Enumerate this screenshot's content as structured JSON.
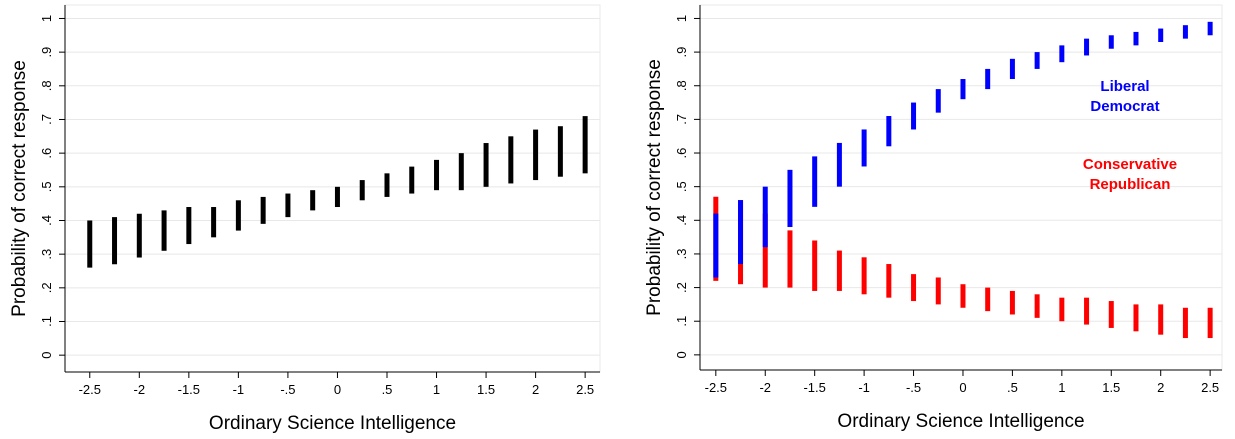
{
  "chart_data": [
    {
      "type": "rangebar",
      "xlabel": "Ordinary Science Intelligence",
      "ylabel": "Probability of correct response",
      "x": [
        -2.5,
        -2.25,
        -2,
        -1.75,
        -1.5,
        -1.25,
        -1,
        -0.75,
        -0.5,
        -0.25,
        0,
        0.25,
        0.5,
        0.75,
        1,
        1.25,
        1.5,
        1.75,
        2,
        2.25,
        2.5
      ],
      "series": [
        {
          "color": "#000000",
          "low": [
            0.26,
            0.27,
            0.29,
            0.31,
            0.33,
            0.35,
            0.37,
            0.39,
            0.41,
            0.43,
            0.44,
            0.46,
            0.47,
            0.48,
            0.49,
            0.49,
            0.5,
            0.51,
            0.52,
            0.53,
            0.54
          ],
          "high": [
            0.4,
            0.41,
            0.42,
            0.43,
            0.44,
            0.44,
            0.46,
            0.47,
            0.48,
            0.49,
            0.5,
            0.52,
            0.54,
            0.56,
            0.58,
            0.6,
            0.63,
            0.65,
            0.67,
            0.68,
            0.71
          ]
        }
      ],
      "xlim": [
        -2.75,
        2.65
      ],
      "ylim": [
        -0.05,
        1.04
      ],
      "xticks": [
        -2.5,
        -2,
        -1.5,
        -1,
        {
          "value": -0.5,
          "label": "-.5"
        },
        0,
        {
          "value": 0.5,
          "label": ".5"
        },
        1,
        1.5,
        2,
        2.5
      ],
      "yticks": [
        0,
        {
          "value": 0.1,
          "label": ".1"
        },
        {
          "value": 0.2,
          "label": ".2"
        },
        {
          "value": 0.3,
          "label": ".3"
        },
        {
          "value": 0.4,
          "label": ".4"
        },
        {
          "value": 0.5,
          "label": ".5"
        },
        {
          "value": 0.6,
          "label": ".6"
        },
        {
          "value": 0.7,
          "label": ".7"
        },
        {
          "value": 0.8,
          "label": ".8"
        },
        {
          "value": 0.9,
          "label": ".9"
        },
        1
      ],
      "grid": true
    },
    {
      "type": "rangebar",
      "xlabel": "Ordinary Science Intelligence",
      "ylabel": "Probability of correct response",
      "x": [
        -2.5,
        -2.25,
        -2,
        -1.75,
        -1.5,
        -1.25,
        -1,
        -0.75,
        -0.5,
        -0.25,
        0,
        0.25,
        0.5,
        0.75,
        1,
        1.25,
        1.5,
        1.75,
        2,
        2.25,
        2.5
      ],
      "series": [
        {
          "name": "Conservative Republican",
          "color": "#ff0000",
          "low": [
            0.22,
            0.21,
            0.2,
            0.2,
            0.19,
            0.19,
            0.18,
            0.17,
            0.16,
            0.15,
            0.14,
            0.13,
            0.12,
            0.11,
            0.1,
            0.09,
            0.08,
            0.07,
            0.06,
            0.05,
            0.05
          ],
          "high": [
            0.47,
            0.46,
            0.42,
            0.37,
            0.34,
            0.31,
            0.29,
            0.27,
            0.24,
            0.23,
            0.21,
            0.2,
            0.19,
            0.18,
            0.17,
            0.17,
            0.16,
            0.15,
            0.15,
            0.14,
            0.14
          ]
        },
        {
          "name": "Liberal Democrat",
          "color": "#0000ff",
          "low": [
            0.23,
            0.27,
            0.32,
            0.38,
            0.44,
            0.5,
            0.56,
            0.62,
            0.67,
            0.72,
            0.76,
            0.79,
            0.82,
            0.85,
            0.87,
            0.89,
            0.91,
            0.92,
            0.93,
            0.94,
            0.95
          ],
          "high": [
            0.42,
            0.46,
            0.5,
            0.55,
            0.59,
            0.63,
            0.67,
            0.71,
            0.75,
            0.79,
            0.82,
            0.85,
            0.88,
            0.9,
            0.92,
            0.94,
            0.95,
            0.96,
            0.97,
            0.98,
            0.99
          ]
        }
      ],
      "xlim": [
        -2.66,
        2.62
      ],
      "ylim": [
        -0.045,
        1.04
      ],
      "xticks": [
        -2.5,
        -2,
        -1.5,
        -1,
        {
          "value": -0.5,
          "label": "-.5"
        },
        0,
        {
          "value": 0.5,
          "label": ".5"
        },
        1,
        1.5,
        2,
        2.5
      ],
      "yticks": [
        0,
        {
          "value": 0.1,
          "label": ".1"
        },
        {
          "value": 0.2,
          "label": ".2"
        },
        {
          "value": 0.3,
          "label": ".3"
        },
        {
          "value": 0.4,
          "label": ".4"
        },
        {
          "value": 0.5,
          "label": ".5"
        },
        {
          "value": 0.6,
          "label": ".6"
        },
        {
          "value": 0.7,
          "label": ".7"
        },
        {
          "value": 0.8,
          "label": ".8"
        },
        {
          "value": 0.9,
          "label": ".9"
        },
        1
      ],
      "grid": true
    }
  ]
}
